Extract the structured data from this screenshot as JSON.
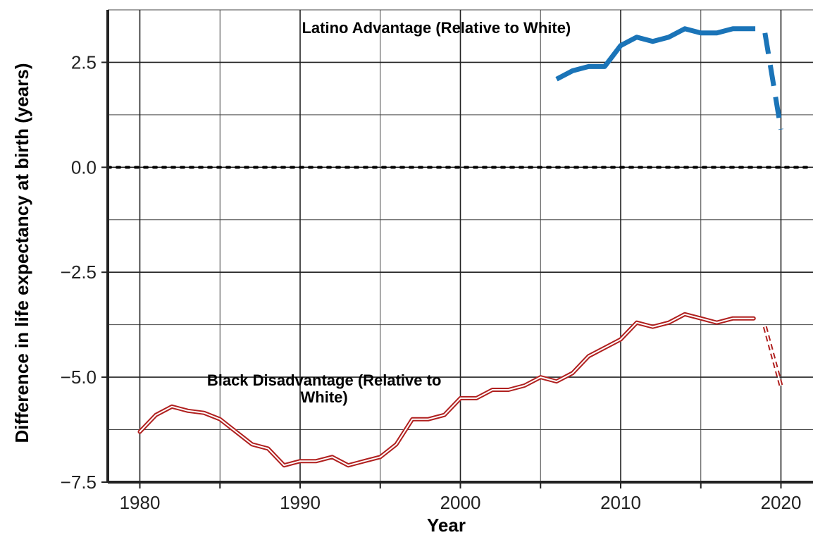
{
  "chart_data": {
    "type": "line",
    "title": "",
    "xlabel": "Year",
    "ylabel": "Difference in life expectancy at birth (years)",
    "xlim": [
      1978,
      2022
    ],
    "ylim": [
      -7.5,
      3.75
    ],
    "x_ticks": [
      1980,
      1990,
      2000,
      2010,
      2020
    ],
    "x_tick_labels": [
      "1980",
      "1990",
      "2000",
      "2010",
      "2020"
    ],
    "y_ticks": [
      2.5,
      0.0,
      -2.5,
      -5.0,
      -7.5
    ],
    "y_tick_labels": [
      "2.5",
      "0.0",
      "−2.5",
      "−5.0",
      "−7.5"
    ],
    "grid": true,
    "reference_line": {
      "y": 0,
      "style": "dotted",
      "color": "#000000"
    },
    "series": [
      {
        "key": "latino",
        "color": "#1a74b8",
        "style": "solid",
        "x": [
          2006,
          2007,
          2008,
          2009,
          2010,
          2011,
          2012,
          2013,
          2014,
          2015,
          2016,
          2017,
          2018.4
        ],
        "y": [
          2.1,
          2.3,
          2.4,
          2.4,
          2.9,
          3.1,
          3.0,
          3.1,
          3.3,
          3.2,
          3.2,
          3.3,
          3.3
        ]
      },
      {
        "key": "latino_projection",
        "color": "#1a74b8",
        "style": "dashed",
        "x": [
          2019,
          2020
        ],
        "y": [
          3.2,
          0.9
        ]
      },
      {
        "key": "black",
        "color": "#b0201f",
        "style": "double",
        "x": [
          1980,
          1981,
          1982,
          1983,
          1984,
          1985,
          1986,
          1987,
          1988,
          1989,
          1990,
          1991,
          1992,
          1993,
          1994,
          1995,
          1996,
          1997,
          1998,
          1999,
          2000,
          2001,
          2002,
          2003,
          2004,
          2005,
          2006,
          2007,
          2008,
          2009,
          2010,
          2011,
          2012,
          2013,
          2014,
          2015,
          2016,
          2017,
          2018.3
        ],
        "y": [
          -6.3,
          -5.9,
          -5.7,
          -5.8,
          -5.85,
          -6.0,
          -6.3,
          -6.6,
          -6.7,
          -7.1,
          -7.0,
          -7.0,
          -6.9,
          -7.1,
          -7.0,
          -6.9,
          -6.6,
          -6.0,
          -6.0,
          -5.9,
          -5.5,
          -5.5,
          -5.3,
          -5.3,
          -5.2,
          -5.0,
          -5.1,
          -4.9,
          -4.5,
          -4.3,
          -4.1,
          -3.7,
          -3.8,
          -3.7,
          -3.5,
          -3.6,
          -3.7,
          -3.6,
          -3.6
        ]
      },
      {
        "key": "black_projection",
        "color": "#b0201f",
        "style": "double-dashed",
        "x": [
          2019,
          2020
        ],
        "y": [
          -3.8,
          -5.2
        ]
      }
    ],
    "annotations": [
      {
        "text": "Latino Advantage (Relative to White)",
        "x": 1998.5,
        "y": 3.2
      },
      {
        "text": "Black Disadvantage (Relative to",
        "x": 1991.5,
        "y": -5.2
      },
      {
        "text": "White)",
        "x": 1991.5,
        "y": -5.6
      }
    ]
  }
}
